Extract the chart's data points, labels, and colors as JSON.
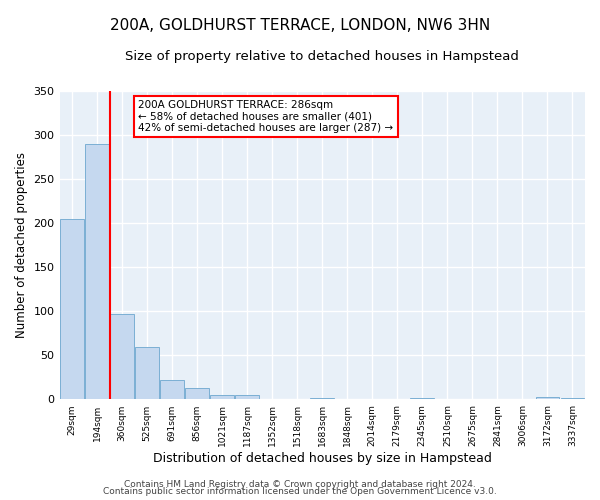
{
  "title": "200A, GOLDHURST TERRACE, LONDON, NW6 3HN",
  "subtitle": "Size of property relative to detached houses in Hampstead",
  "xlabel": "Distribution of detached houses by size in Hampstead",
  "ylabel": "Number of detached properties",
  "bar_labels": [
    "29sqm",
    "194sqm",
    "360sqm",
    "525sqm",
    "691sqm",
    "856sqm",
    "1021sqm",
    "1187sqm",
    "1352sqm",
    "1518sqm",
    "1683sqm",
    "1848sqm",
    "2014sqm",
    "2179sqm",
    "2345sqm",
    "2510sqm",
    "2675sqm",
    "2841sqm",
    "3006sqm",
    "3172sqm",
    "3337sqm"
  ],
  "bar_values": [
    205,
    290,
    97,
    60,
    22,
    13,
    5,
    5,
    0,
    0,
    2,
    0,
    0,
    0,
    2,
    0,
    0,
    0,
    0,
    3,
    2
  ],
  "bar_color": "#c5d8ef",
  "bar_edge_color": "#7bafd4",
  "ylim": [
    0,
    350
  ],
  "yticks": [
    0,
    50,
    100,
    150,
    200,
    250,
    300,
    350
  ],
  "property_line_x": 1.5,
  "property_line_color": "red",
  "annotation_title": "200A GOLDHURST TERRACE: 286sqm",
  "annotation_line1": "← 58% of detached houses are smaller (401)",
  "annotation_line2": "42% of semi-detached houses are larger (287) →",
  "annotation_box_color": "red",
  "footer_line1": "Contains HM Land Registry data © Crown copyright and database right 2024.",
  "footer_line2": "Contains public sector information licensed under the Open Government Licence v3.0.",
  "bg_color": "#ffffff",
  "plot_bg_color": "#e8f0f8",
  "grid_color": "#ffffff",
  "title_fontsize": 11,
  "subtitle_fontsize": 9.5,
  "xlabel_fontsize": 9,
  "ylabel_fontsize": 8.5,
  "footer_fontsize": 6.5
}
